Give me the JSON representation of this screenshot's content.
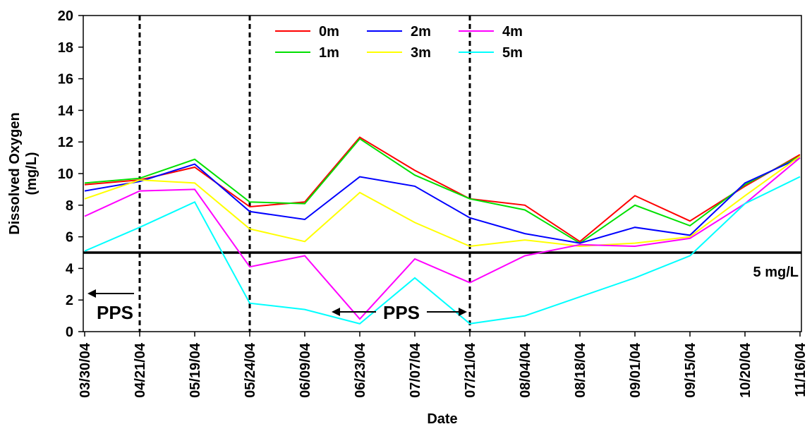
{
  "chart_data": {
    "type": "line",
    "title": "",
    "xlabel": "Date",
    "ylabel": "Dissolved Oxygen (mg/L)",
    "ylabel_lines": [
      "Dissolved Oxygen",
      "(mg/L)"
    ],
    "ylim": [
      0,
      20
    ],
    "yticks": [
      "0",
      "2",
      "4",
      "6",
      "8",
      "10",
      "12",
      "14",
      "16",
      "18",
      "20"
    ],
    "categories": [
      "03/30/04",
      "04/21/04",
      "05/19/04",
      "05/24/04",
      "06/09/04",
      "06/23/04",
      "07/07/04",
      "07/21/04",
      "08/04/04",
      "08/18/04",
      "09/01/04",
      "09/15/04",
      "10/20/04",
      "11/16/04"
    ],
    "grid": false,
    "legend_position": "top-center",
    "series": [
      {
        "name": "0m",
        "color": "#ff0000",
        "values": [
          9.3,
          9.6,
          10.4,
          7.9,
          8.2,
          12.3,
          10.2,
          8.4,
          8.0,
          5.7,
          8.6,
          7.0,
          9.2,
          11.2
        ]
      },
      {
        "name": "1m",
        "color": "#00e000",
        "values": [
          9.4,
          9.7,
          10.9,
          8.2,
          8.1,
          12.2,
          9.9,
          8.4,
          7.7,
          5.6,
          8.0,
          6.7,
          9.3,
          11.1
        ]
      },
      {
        "name": "2m",
        "color": "#0000ff",
        "values": [
          8.9,
          9.5,
          10.6,
          7.6,
          7.1,
          9.8,
          9.2,
          7.2,
          6.2,
          5.6,
          6.6,
          6.1,
          9.4,
          11.0
        ]
      },
      {
        "name": "3m",
        "color": "#ffff00",
        "values": [
          8.4,
          9.6,
          9.4,
          6.5,
          5.7,
          8.8,
          6.9,
          5.4,
          5.8,
          5.4,
          5.6,
          6.0,
          8.6,
          11.1
        ]
      },
      {
        "name": "4m",
        "color": "#ff00ff",
        "values": [
          7.3,
          8.9,
          9.0,
          4.1,
          4.8,
          0.8,
          4.6,
          3.1,
          4.8,
          5.5,
          5.4,
          5.9,
          8.1,
          11.0
        ]
      },
      {
        "name": "5m",
        "color": "#00ffff",
        "values": [
          5.1,
          6.6,
          8.2,
          1.8,
          1.4,
          0.5,
          3.4,
          0.5,
          1.0,
          2.2,
          3.4,
          4.8,
          8.1,
          9.8
        ]
      }
    ],
    "reference_line": {
      "value": 5,
      "label": "5 mg/L"
    },
    "vertical_markers": [
      1,
      3,
      7
    ],
    "annotations": [
      {
        "text": "PPS",
        "from": 1,
        "to": 0,
        "arrow": "left"
      },
      {
        "text": "PPS",
        "from": 3,
        "to": 7,
        "arrow": "both"
      }
    ]
  }
}
